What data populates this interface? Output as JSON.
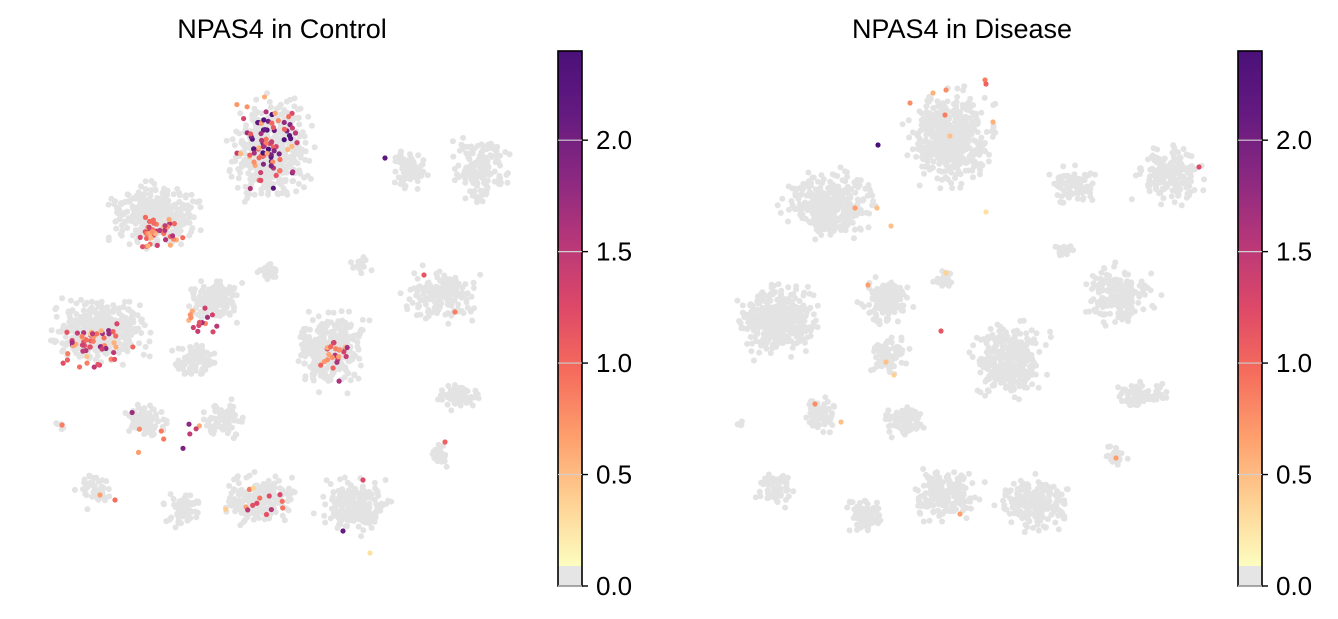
{
  "chart_data": [
    {
      "type": "scatter",
      "title": "NPAS4 in Control",
      "colorbar": {
        "colormap": "magma_r",
        "range": [
          0.0,
          2.4
        ],
        "zero_color": "#e5e5e5",
        "ticks": [
          0.0,
          0.5,
          1.0,
          1.5,
          2.0
        ],
        "tick_labels": [
          "0.0",
          "0.5",
          "1.0",
          "1.5",
          "2.0"
        ]
      },
      "axes_visible": false,
      "grid": false,
      "background_cells_color": "#e3e3e3"
    },
    {
      "type": "scatter",
      "title": "NPAS4 in Disease",
      "colorbar": {
        "colormap": "magma_r",
        "range": [
          0.0,
          2.4
        ],
        "zero_color": "#e5e5e5",
        "ticks": [
          0.0,
          0.5,
          1.0,
          1.5,
          2.0
        ],
        "tick_labels": [
          "0.0",
          "0.5",
          "1.0",
          "1.5",
          "2.0"
        ]
      },
      "axes_visible": false,
      "grid": false,
      "background_cells_color": "#e3e3e3"
    }
  ]
}
